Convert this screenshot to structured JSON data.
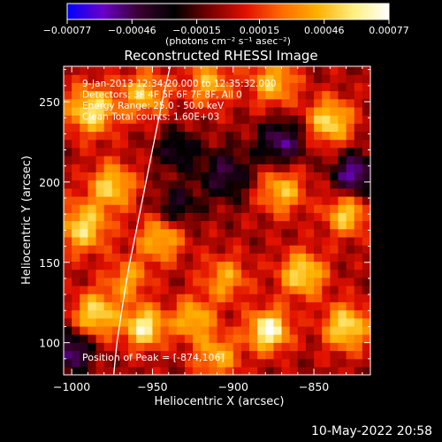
{
  "chart_data": {
    "type": "heatmap",
    "title": "Reconstructed RHESSI Image",
    "xlabel": "Heliocentric X (arcsec)",
    "ylabel": "Heliocentric Y (arcsec)",
    "xlim": [
      -1005,
      -815
    ],
    "ylim": [
      80,
      272
    ],
    "xticks": [
      -1000,
      -950,
      -900,
      -850
    ],
    "xtick_labels": [
      "−1000",
      "−950",
      "−900",
      "−850"
    ],
    "yticks": [
      100,
      150,
      200,
      250
    ],
    "ytick_labels": [
      "100",
      "150",
      "200",
      "250"
    ],
    "colorbar": {
      "range": [
        -0.00077,
        0.00077
      ],
      "ticks": [
        -0.00077,
        -0.00046,
        -0.00015,
        0.00015,
        0.00046,
        0.00077
      ],
      "tick_labels": [
        "−0.00077",
        "−0.00046",
        "−0.00015",
        "0.00015",
        "0.00046",
        "0.00077"
      ],
      "unit_label": "(photons cm⁻² s⁻¹ asec⁻²)",
      "colors": [
        "#0000ff",
        "#6a00c8",
        "#3a0030",
        "#000000",
        "#7a0000",
        "#e11000",
        "#ff6a00",
        "#ffb000",
        "#ffee80",
        "#ffffff"
      ]
    },
    "info_lines": [
      "9-Jan-2013 12:34:20.000 to 12:35:32.000",
      "Detectors: 3F 4F 5F 6F 7F 8F, All 0",
      "Energy Range: 25.0 - 50.0 keV",
      "Clean     Total counts: 1.60E+03"
    ],
    "peak_label": "Position of Peak = [-874,106]",
    "limb_curve": {
      "x": [
        -974,
        -972,
        -969,
        -965,
        -960,
        -955,
        -950,
        -944,
        -939
      ],
      "y": [
        80,
        100,
        120,
        145,
        170,
        195,
        220,
        250,
        272
      ]
    },
    "sources": [
      {
        "x": -878,
        "y": 108,
        "amp": 0.00077,
        "sigma": 9
      },
      {
        "x": -955,
        "y": 110,
        "amp": 0.00068,
        "sigma": 9
      },
      {
        "x": -985,
        "y": 118,
        "amp": 0.0006,
        "sigma": 10
      },
      {
        "x": -945,
        "y": 165,
        "amp": 0.0005,
        "sigma": 10
      },
      {
        "x": -993,
        "y": 172,
        "amp": 0.00058,
        "sigma": 11
      },
      {
        "x": -975,
        "y": 198,
        "amp": 0.00055,
        "sigma": 10
      },
      {
        "x": -988,
        "y": 245,
        "amp": 0.00062,
        "sigma": 11
      },
      {
        "x": -955,
        "y": 255,
        "amp": 0.0005,
        "sigma": 10
      },
      {
        "x": -915,
        "y": 262,
        "amp": 0.00045,
        "sigma": 10
      },
      {
        "x": -875,
        "y": 262,
        "amp": 0.0005,
        "sigma": 10
      },
      {
        "x": -840,
        "y": 238,
        "amp": 0.0006,
        "sigma": 10
      },
      {
        "x": -870,
        "y": 195,
        "amp": 0.0005,
        "sigma": 10
      },
      {
        "x": -830,
        "y": 180,
        "amp": 0.00055,
        "sigma": 9
      },
      {
        "x": -857,
        "y": 143,
        "amp": 0.0006,
        "sigma": 10
      },
      {
        "x": -830,
        "y": 110,
        "amp": 0.00062,
        "sigma": 10
      },
      {
        "x": -910,
        "y": 92,
        "amp": 0.00045,
        "sigma": 10
      },
      {
        "x": -905,
        "y": 140,
        "amp": 0.00042,
        "sigma": 10
      },
      {
        "x": -925,
        "y": 115,
        "amp": 0.0005,
        "sigma": 9
      },
      {
        "x": -965,
        "y": 140,
        "amp": 0.0004,
        "sigma": 9
      },
      {
        "x": -1000,
        "y": 95,
        "amp": -0.00055,
        "sigma": 9
      },
      {
        "x": -870,
        "y": 225,
        "amp": -0.0005,
        "sigma": 10
      },
      {
        "x": -825,
        "y": 205,
        "amp": -0.0006,
        "sigma": 9
      },
      {
        "x": -905,
        "y": 205,
        "amp": -0.0004,
        "sigma": 11
      },
      {
        "x": -935,
        "y": 220,
        "amp": -0.00035,
        "sigma": 9
      },
      {
        "x": -935,
        "y": 185,
        "amp": -0.00035,
        "sigma": 9
      }
    ]
  },
  "footer": {
    "timestamp": "10-May-2022 20:58"
  }
}
